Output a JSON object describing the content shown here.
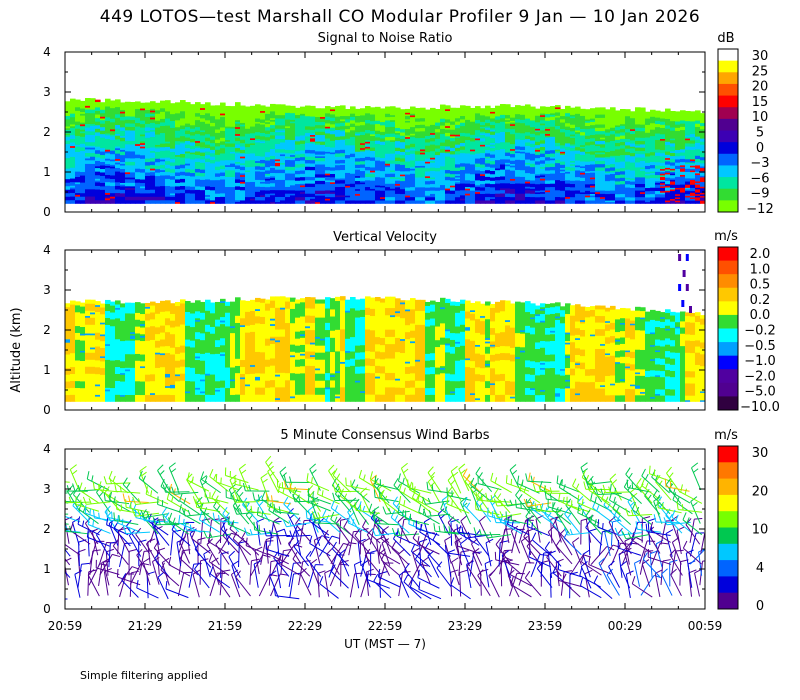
{
  "figure": {
    "title": "449 LOTOS—test Marshall CO Modular Profiler  9 Jan — 10 Jan 2026",
    "ylabel": "Altitude (km)",
    "xlabel": "UT  (MST — 7)",
    "note": "Simple filtering applied",
    "time_ticks": [
      "20:59",
      "21:29",
      "21:59",
      "22:29",
      "22:59",
      "23:29",
      "23:59",
      "00:29",
      "00:59"
    ],
    "y_ticks": [
      "0",
      "1",
      "2",
      "3",
      "4"
    ]
  },
  "chart_data": [
    {
      "type": "heatmap",
      "title": "Signal to Noise Ratio",
      "unit": "dB",
      "x": "time (UT), 20:59 to 00:59",
      "ylim": [
        0,
        4
      ],
      "y_ticks": [
        "0",
        "1",
        "2",
        "3",
        "4"
      ],
      "data_top_km": [
        2.8,
        2.75,
        2.65,
        2.6,
        2.65,
        2.6,
        2.5
      ],
      "colorbar_labels": [
        "30",
        "25",
        "20",
        "15",
        "10",
        "5",
        "0",
        "−3",
        "−6",
        "−9",
        "−12"
      ],
      "colorbar_colors": [
        "#ffffff",
        "#ffff00",
        "#ffa500",
        "#ff5000",
        "#ff0000",
        "#a00050",
        "#500090",
        "#3c00b4",
        "#0000dc",
        "#0064ff",
        "#00c8ff",
        "#00e6a0",
        "#32dc32",
        "#78ff00"
      ]
    },
    {
      "type": "heatmap",
      "title": "Vertical Velocity",
      "unit": "m/s",
      "x": "time (UT), 20:59 to 00:59",
      "ylim": [
        0,
        4
      ],
      "y_ticks": [
        "0",
        "1",
        "2",
        "3",
        "4"
      ],
      "data_top_km": [
        2.7,
        2.7,
        2.8,
        2.8,
        2.7,
        2.6,
        2.4
      ],
      "colorbar_labels": [
        "2.0",
        "1.0",
        "0.5",
        "0.2",
        "0.0",
        "−0.2",
        "−0.5",
        "−1.0",
        "−2.0",
        "−5.0",
        "−10.0"
      ],
      "colorbar_colors": [
        "#ff0000",
        "#ff5000",
        "#ff8c00",
        "#ffc800",
        "#ffff00",
        "#32dc32",
        "#00ffff",
        "#00a0ff",
        "#0000ff",
        "#5000a0",
        "#500090",
        "#300040"
      ]
    },
    {
      "type": "barbs",
      "title": "5 Minute Consensus Wind Barbs",
      "unit": "m/s",
      "x": "time (UT), 20:59 to 00:59",
      "ylim": [
        0,
        4
      ],
      "y_ticks": [
        "0",
        "1",
        "2",
        "3",
        "4"
      ],
      "data_top_km": 3.2,
      "colorbar_labels": [
        "30",
        "20",
        "10",
        "4",
        "0"
      ],
      "colorbar_colors": [
        "#ff0000",
        "#ff7800",
        "#ffb400",
        "#ffff00",
        "#78ff00",
        "#00c850",
        "#00c8ff",
        "#0064ff",
        "#0000dc",
        "#500090"
      ]
    }
  ]
}
